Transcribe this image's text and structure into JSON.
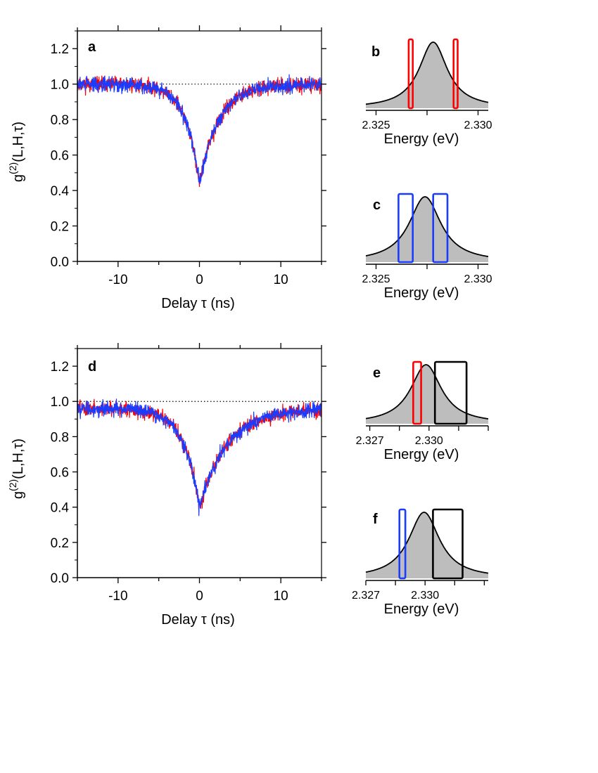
{
  "chart_data": [
    {
      "panel": "a",
      "type": "line",
      "xlabel": "Delay τ (ns)",
      "ylabel_base": "g",
      "ylabel_sup": "(2)",
      "ylabel_rest": "(L,H,τ)",
      "xlim": [
        -15,
        15
      ],
      "ylim": [
        0.0,
        1.3
      ],
      "xticks": [
        -10,
        0,
        10
      ],
      "xtick_labels": [
        "-10",
        "0",
        "10"
      ],
      "yticks": [
        0.0,
        0.2,
        0.4,
        0.6,
        0.8,
        1.0,
        1.2
      ],
      "ytick_labels": [
        "0.0",
        "0.2",
        "0.4",
        "0.6",
        "0.8",
        "1.0",
        "1.2"
      ],
      "reference_line": 1.0,
      "model": {
        "baseline": 1.0,
        "dip_min": 0.44,
        "width_left_ns": 1.7,
        "width_right_ns": 2.4,
        "noise": 0.055
      },
      "series": [
        {
          "name": "red",
          "color": "#ff0000",
          "seed": 11,
          "min_value": 0.42
        },
        {
          "name": "blue",
          "color": "#1a3cff",
          "seed": 29,
          "min_value": 0.44
        }
      ]
    },
    {
      "panel": "b",
      "type": "area",
      "xlabel": "Energy (eV)",
      "xlim": [
        2.3245,
        2.3305
      ],
      "xticks": [
        2.325,
        2.3275,
        2.33
      ],
      "xtick_labels": [
        "2.325",
        "",
        "2.330"
      ],
      "peak_energy": 2.3278,
      "peak_width": 0.0008,
      "windows": [
        {
          "color": "#ff0000",
          "from": 2.3266,
          "to": 2.3268
        },
        {
          "color": "#ff0000",
          "from": 2.3288,
          "to": 2.329
        }
      ]
    },
    {
      "panel": "c",
      "type": "area",
      "xlabel": "Energy (eV)",
      "xlim": [
        2.3245,
        2.3305
      ],
      "xticks": [
        2.325,
        2.3275,
        2.33
      ],
      "xtick_labels": [
        "2.325",
        "",
        "2.330"
      ],
      "peak_energy": 2.3274,
      "peak_width": 0.0009,
      "windows": [
        {
          "color": "#1a3cff",
          "from": 2.3261,
          "to": 2.3268
        },
        {
          "color": "#1a3cff",
          "from": 2.3278,
          "to": 2.3285
        }
      ]
    },
    {
      "panel": "d",
      "type": "line",
      "xlabel": "Delay τ (ns)",
      "ylabel_base": "g",
      "ylabel_sup": "(2)",
      "ylabel_rest": "(L,H,τ)",
      "xlim": [
        -15,
        15
      ],
      "ylim": [
        0.0,
        1.3
      ],
      "xticks": [
        -10,
        0,
        10
      ],
      "xtick_labels": [
        "-10",
        "0",
        "10"
      ],
      "yticks": [
        0.0,
        0.2,
        0.4,
        0.6,
        0.8,
        1.0,
        1.2
      ],
      "ytick_labels": [
        "0.0",
        "0.2",
        "0.4",
        "0.6",
        "0.8",
        "1.0",
        "1.2"
      ],
      "reference_line": 1.0,
      "model": {
        "baseline": 0.96,
        "dip_min": 0.4,
        "width_left_ns": 1.9,
        "width_right_ns": 3.4,
        "noise": 0.055
      },
      "series": [
        {
          "name": "red",
          "color": "#ff0000",
          "seed": 47,
          "min_value": 0.37
        },
        {
          "name": "blue",
          "color": "#1a3cff",
          "seed": 83,
          "min_value": 0.35
        }
      ]
    },
    {
      "panel": "e",
      "type": "area",
      "xlabel": "Energy (eV)",
      "xlim": [
        2.3268,
        2.333
      ],
      "xticks": [
        2.327,
        2.3285,
        2.33,
        2.3315,
        2.333
      ],
      "xtick_labels": [
        "2.327",
        "",
        "2.330",
        "",
        ""
      ],
      "peak_energy": 2.32985,
      "peak_width": 0.0009,
      "windows": [
        {
          "color": "#ff0000",
          "from": 2.3292,
          "to": 2.3296
        },
        {
          "color": "#000000",
          "from": 2.3303,
          "to": 2.3319
        }
      ]
    },
    {
      "panel": "f",
      "type": "area",
      "xlabel": "Energy (eV)",
      "xlim": [
        2.327,
        2.3332
      ],
      "xticks": [
        2.327,
        2.3285,
        2.33,
        2.3315,
        2.333
      ],
      "xtick_labels": [
        "2.327",
        "",
        "2.330",
        "",
        ""
      ],
      "peak_energy": 2.32995,
      "peak_width": 0.0009,
      "windows": [
        {
          "color": "#1a3cff",
          "from": 2.3287,
          "to": 2.329
        },
        {
          "color": "#000000",
          "from": 2.3304,
          "to": 2.3319
        }
      ]
    }
  ]
}
